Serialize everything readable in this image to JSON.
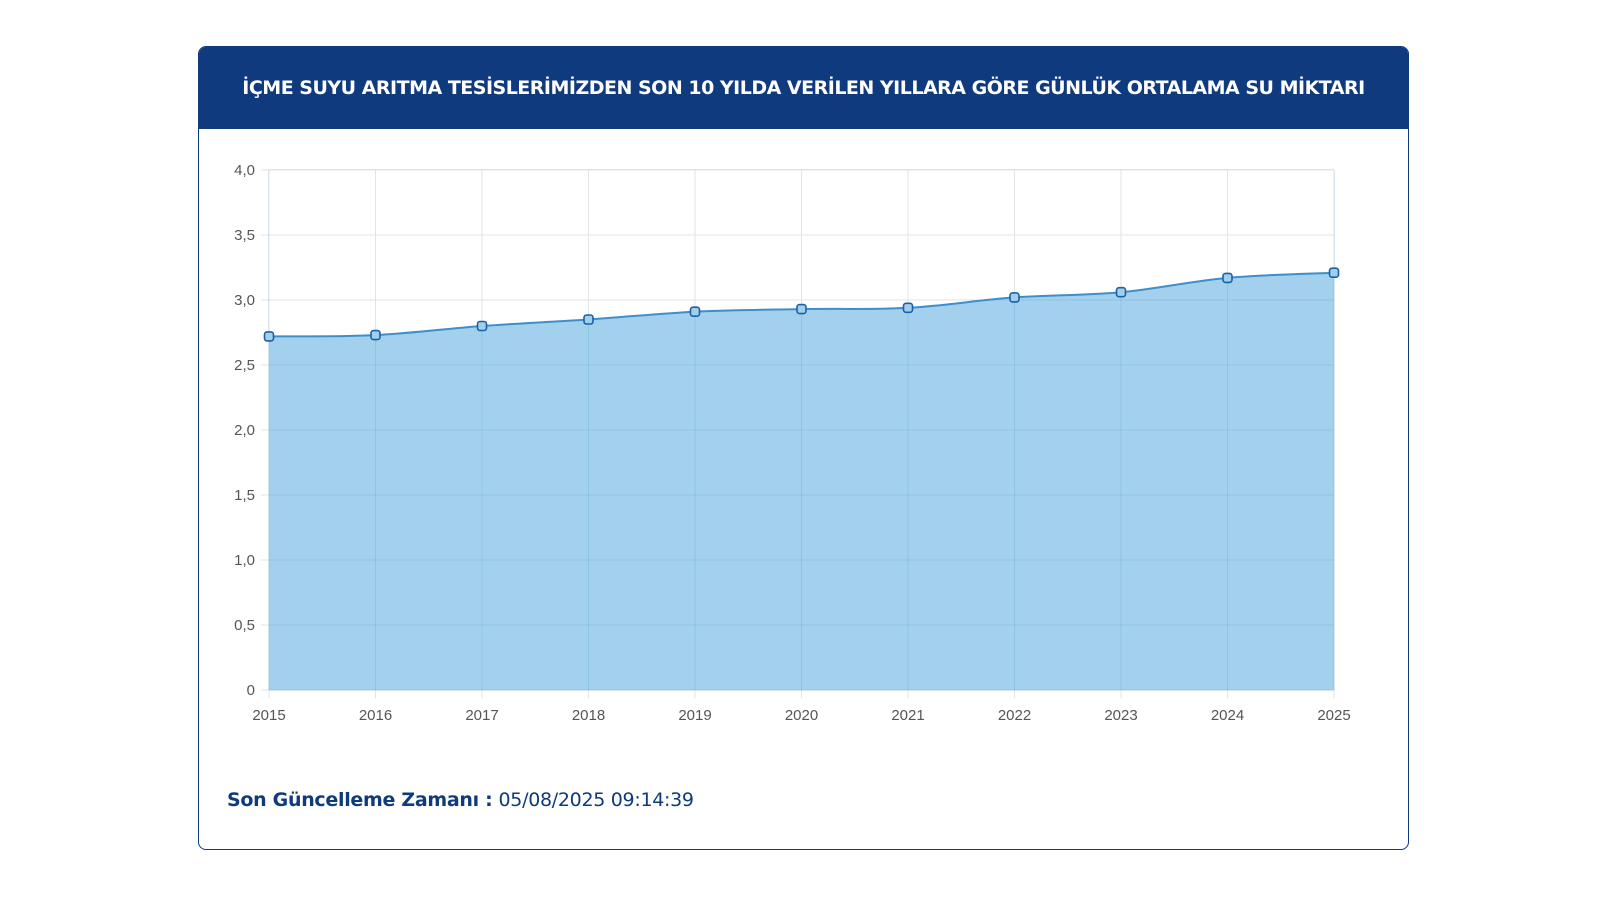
{
  "header": {
    "title": "İÇME SUYU ARITMA TESİSLERİMİZDEN SON 10 YILDA VERİLEN YILLARA GÖRE GÜNLÜK ORTALAMA SU MİKTARI"
  },
  "footer": {
    "label": "Son Güncelleme Zamanı :",
    "value": "05/08/2025 09:14:39"
  },
  "colors": {
    "brand": "#0f3a7d",
    "area_fill": "#9ecfec",
    "line": "#3d8fcc",
    "grid": "#e3e3e3"
  },
  "chart_data": {
    "type": "area",
    "title": "",
    "xlabel": "",
    "ylabel": "",
    "categories": [
      "2015",
      "2016",
      "2017",
      "2018",
      "2019",
      "2020",
      "2021",
      "2022",
      "2023",
      "2024",
      "2025"
    ],
    "values": [
      2.72,
      2.73,
      2.8,
      2.85,
      2.91,
      2.93,
      2.94,
      3.02,
      3.06,
      3.17,
      3.21
    ],
    "ylim": [
      0,
      4
    ],
    "yticks": [
      0,
      0.5,
      1.0,
      1.5,
      2.0,
      2.5,
      3.0,
      3.5,
      4.0
    ],
    "ytick_labels": [
      "0",
      "0,5",
      "1,0",
      "1,5",
      "2,0",
      "2,5",
      "3,0",
      "3,5",
      "4,0"
    ],
    "grid": true,
    "legend": "none"
  }
}
